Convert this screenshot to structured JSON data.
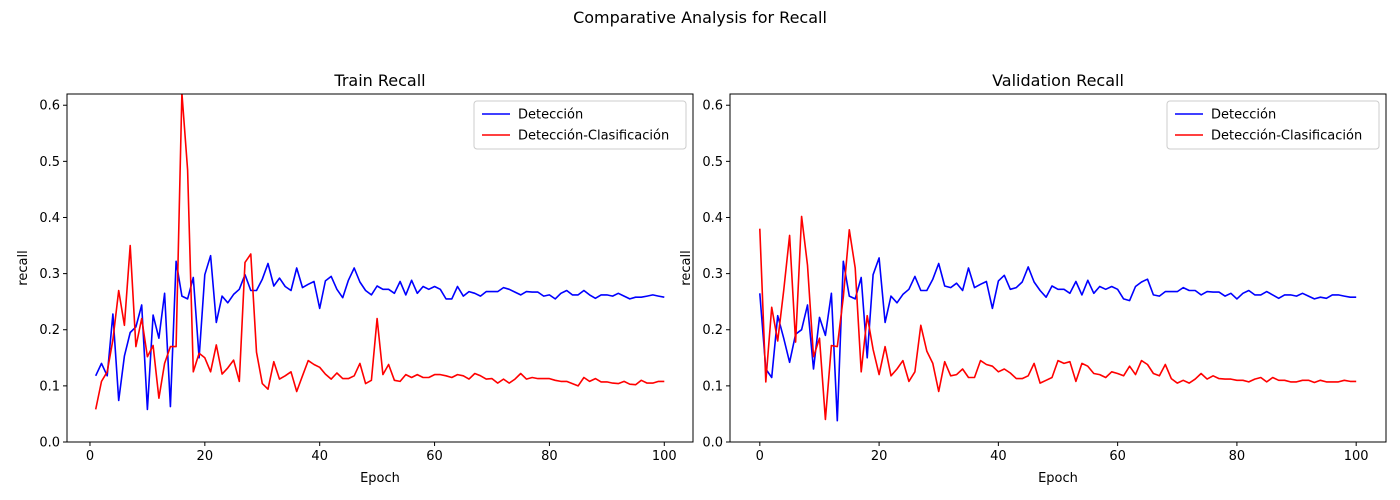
{
  "figure": {
    "suptitle": "Comparative Analysis for Recall"
  },
  "chart_data": [
    {
      "type": "line",
      "title": "Train Recall",
      "xlabel": "Epoch",
      "ylabel": "recall",
      "xlim": [
        -4,
        105
      ],
      "ylim": [
        0,
        0.62
      ],
      "xticks": [
        0,
        20,
        40,
        60,
        80,
        100
      ],
      "yticks": [
        0.0,
        0.1,
        0.2,
        0.3,
        0.4,
        0.5,
        0.6
      ],
      "grid": false,
      "legend": "top-right",
      "series": [
        {
          "name": "Detección",
          "color": "#0000ff",
          "x": [
            1,
            2,
            3,
            4,
            5,
            6,
            7,
            8,
            9,
            10,
            11,
            12,
            13,
            14,
            15,
            16,
            17,
            18,
            19,
            20,
            21,
            22,
            23,
            24,
            25,
            26,
            27,
            28,
            29,
            30,
            31,
            32,
            33,
            34,
            35,
            36,
            37,
            38,
            39,
            40,
            41,
            42,
            43,
            44,
            45,
            46,
            47,
            48,
            49,
            50,
            51,
            52,
            53,
            54,
            55,
            56,
            57,
            58,
            59,
            60,
            61,
            62,
            63,
            64,
            65,
            66,
            67,
            68,
            69,
            70,
            71,
            72,
            73,
            74,
            75,
            76,
            77,
            78,
            79,
            80,
            81,
            82,
            83,
            84,
            85,
            86,
            87,
            88,
            89,
            90,
            91,
            92,
            93,
            94,
            95,
            96,
            97,
            98,
            99,
            100
          ],
          "y": [
            0.118,
            0.14,
            0.118,
            0.228,
            0.074,
            0.153,
            0.195,
            0.205,
            0.244,
            0.058,
            0.226,
            0.185,
            0.265,
            0.063,
            0.322,
            0.26,
            0.255,
            0.293,
            0.15,
            0.298,
            0.332,
            0.213,
            0.26,
            0.248,
            0.263,
            0.272,
            0.298,
            0.27,
            0.27,
            0.29,
            0.318,
            0.278,
            0.292,
            0.277,
            0.27,
            0.31,
            0.275,
            0.281,
            0.286,
            0.238,
            0.287,
            0.295,
            0.272,
            0.257,
            0.288,
            0.31,
            0.285,
            0.27,
            0.262,
            0.278,
            0.272,
            0.272,
            0.265,
            0.286,
            0.262,
            0.288,
            0.265,
            0.277,
            0.272,
            0.277,
            0.272,
            0.255,
            0.255,
            0.277,
            0.26,
            0.268,
            0.265,
            0.26,
            0.268,
            0.268,
            0.268,
            0.275,
            0.272,
            0.267,
            0.262,
            0.268,
            0.267,
            0.267,
            0.26,
            0.262,
            0.255,
            0.265,
            0.27,
            0.262,
            0.262,
            0.27,
            0.262,
            0.256,
            0.262,
            0.262,
            0.26,
            0.265,
            0.26,
            0.255,
            0.258,
            0.258,
            0.26,
            0.262,
            0.26,
            0.258
          ]
        },
        {
          "name": "Detección-Clasificación",
          "color": "#ff0000",
          "x": [
            1,
            2,
            3,
            4,
            5,
            6,
            7,
            8,
            9,
            10,
            11,
            12,
            13,
            14,
            15,
            16,
            17,
            18,
            19,
            20,
            21,
            22,
            23,
            24,
            25,
            26,
            27,
            28,
            29,
            30,
            31,
            32,
            33,
            34,
            35,
            36,
            37,
            38,
            39,
            40,
            41,
            42,
            43,
            44,
            45,
            46,
            47,
            48,
            49,
            50,
            51,
            52,
            53,
            54,
            55,
            56,
            57,
            58,
            59,
            60,
            61,
            62,
            63,
            64,
            65,
            66,
            67,
            68,
            69,
            70,
            71,
            72,
            73,
            74,
            75,
            76,
            77,
            78,
            79,
            80,
            81,
            82,
            83,
            84,
            85,
            86,
            87,
            88,
            89,
            90,
            91,
            92,
            93,
            94,
            95,
            96,
            97,
            98,
            99,
            100
          ],
          "y": [
            0.058,
            0.108,
            0.125,
            0.182,
            0.27,
            0.208,
            0.35,
            0.17,
            0.22,
            0.152,
            0.172,
            0.078,
            0.14,
            0.17,
            0.17,
            0.622,
            0.485,
            0.125,
            0.158,
            0.15,
            0.125,
            0.173,
            0.121,
            0.132,
            0.146,
            0.108,
            0.32,
            0.335,
            0.16,
            0.104,
            0.094,
            0.143,
            0.112,
            0.118,
            0.125,
            0.09,
            0.118,
            0.145,
            0.138,
            0.133,
            0.121,
            0.112,
            0.123,
            0.113,
            0.113,
            0.118,
            0.14,
            0.104,
            0.11,
            0.22,
            0.12,
            0.138,
            0.11,
            0.108,
            0.12,
            0.115,
            0.12,
            0.115,
            0.115,
            0.12,
            0.12,
            0.118,
            0.115,
            0.12,
            0.118,
            0.112,
            0.122,
            0.118,
            0.112,
            0.113,
            0.105,
            0.112,
            0.105,
            0.112,
            0.122,
            0.112,
            0.115,
            0.113,
            0.113,
            0.113,
            0.11,
            0.108,
            0.108,
            0.104,
            0.1,
            0.115,
            0.108,
            0.113,
            0.107,
            0.107,
            0.105,
            0.104,
            0.108,
            0.103,
            0.102,
            0.11,
            0.105,
            0.105,
            0.108,
            0.108
          ]
        }
      ]
    },
    {
      "type": "line",
      "title": "Validation Recall",
      "xlabel": "Epoch",
      "ylabel": "recall",
      "xlim": [
        -5,
        105
      ],
      "ylim": [
        0,
        0.62
      ],
      "xticks": [
        0,
        20,
        40,
        60,
        80,
        100
      ],
      "yticks": [
        0.0,
        0.1,
        0.2,
        0.3,
        0.4,
        0.5,
        0.6
      ],
      "grid": false,
      "legend": "top-right",
      "series": [
        {
          "name": "Detección",
          "color": "#0000ff",
          "x": [
            0,
            1,
            2,
            3,
            4,
            5,
            6,
            7,
            8,
            9,
            10,
            11,
            12,
            13,
            14,
            15,
            16,
            17,
            18,
            19,
            20,
            21,
            22,
            23,
            24,
            25,
            26,
            27,
            28,
            29,
            30,
            31,
            32,
            33,
            34,
            35,
            36,
            37,
            38,
            39,
            40,
            41,
            42,
            43,
            44,
            45,
            46,
            47,
            48,
            49,
            50,
            51,
            52,
            53,
            54,
            55,
            56,
            57,
            58,
            59,
            60,
            61,
            62,
            63,
            64,
            65,
            66,
            67,
            68,
            69,
            70,
            71,
            72,
            73,
            74,
            75,
            76,
            77,
            78,
            79,
            80,
            81,
            82,
            83,
            84,
            85,
            86,
            87,
            88,
            89,
            90,
            91,
            92,
            93,
            94,
            95,
            96,
            97,
            98,
            99,
            100
          ],
          "y": [
            0.265,
            0.13,
            0.115,
            0.225,
            0.185,
            0.142,
            0.192,
            0.2,
            0.244,
            0.13,
            0.222,
            0.19,
            0.265,
            0.038,
            0.322,
            0.26,
            0.255,
            0.293,
            0.15,
            0.298,
            0.328,
            0.213,
            0.26,
            0.248,
            0.263,
            0.272,
            0.295,
            0.27,
            0.27,
            0.29,
            0.318,
            0.278,
            0.275,
            0.283,
            0.27,
            0.31,
            0.275,
            0.281,
            0.286,
            0.238,
            0.287,
            0.297,
            0.272,
            0.275,
            0.285,
            0.312,
            0.285,
            0.27,
            0.258,
            0.278,
            0.272,
            0.272,
            0.265,
            0.286,
            0.262,
            0.288,
            0.265,
            0.277,
            0.272,
            0.277,
            0.272,
            0.255,
            0.252,
            0.277,
            0.285,
            0.29,
            0.262,
            0.26,
            0.268,
            0.268,
            0.268,
            0.275,
            0.27,
            0.27,
            0.262,
            0.268,
            0.267,
            0.267,
            0.26,
            0.265,
            0.255,
            0.265,
            0.27,
            0.262,
            0.262,
            0.268,
            0.262,
            0.256,
            0.262,
            0.262,
            0.26,
            0.265,
            0.26,
            0.255,
            0.258,
            0.256,
            0.262,
            0.262,
            0.26,
            0.258,
            0.258
          ]
        },
        {
          "name": "Detección-Clasificación",
          "color": "#ff0000",
          "x": [
            0,
            1,
            2,
            3,
            4,
            5,
            6,
            7,
            8,
            9,
            10,
            11,
            12,
            13,
            14,
            15,
            16,
            17,
            18,
            19,
            20,
            21,
            22,
            23,
            24,
            25,
            26,
            27,
            28,
            29,
            30,
            31,
            32,
            33,
            34,
            35,
            36,
            37,
            38,
            39,
            40,
            41,
            42,
            43,
            44,
            45,
            46,
            47,
            48,
            49,
            50,
            51,
            52,
            53,
            54,
            55,
            56,
            57,
            58,
            59,
            60,
            61,
            62,
            63,
            64,
            65,
            66,
            67,
            68,
            69,
            70,
            71,
            72,
            73,
            74,
            75,
            76,
            77,
            78,
            79,
            80,
            81,
            82,
            83,
            84,
            85,
            86,
            87,
            88,
            89,
            90,
            91,
            92,
            93,
            94,
            95,
            96,
            97,
            98,
            99,
            100
          ],
          "y": [
            0.38,
            0.107,
            0.24,
            0.18,
            0.27,
            0.368,
            0.178,
            0.402,
            0.315,
            0.152,
            0.185,
            0.04,
            0.172,
            0.17,
            0.258,
            0.378,
            0.31,
            0.125,
            0.225,
            0.165,
            0.12,
            0.17,
            0.118,
            0.13,
            0.145,
            0.108,
            0.125,
            0.208,
            0.162,
            0.14,
            0.09,
            0.143,
            0.118,
            0.12,
            0.13,
            0.115,
            0.115,
            0.145,
            0.138,
            0.135,
            0.125,
            0.13,
            0.123,
            0.113,
            0.113,
            0.118,
            0.14,
            0.105,
            0.11,
            0.115,
            0.145,
            0.14,
            0.143,
            0.108,
            0.14,
            0.135,
            0.122,
            0.12,
            0.115,
            0.125,
            0.122,
            0.118,
            0.135,
            0.12,
            0.145,
            0.138,
            0.122,
            0.118,
            0.138,
            0.113,
            0.105,
            0.11,
            0.105,
            0.112,
            0.122,
            0.112,
            0.118,
            0.113,
            0.112,
            0.112,
            0.11,
            0.11,
            0.107,
            0.112,
            0.115,
            0.107,
            0.115,
            0.11,
            0.11,
            0.107,
            0.107,
            0.11,
            0.11,
            0.106,
            0.11,
            0.107,
            0.107,
            0.107,
            0.11,
            0.108,
            0.108
          ]
        }
      ]
    }
  ]
}
